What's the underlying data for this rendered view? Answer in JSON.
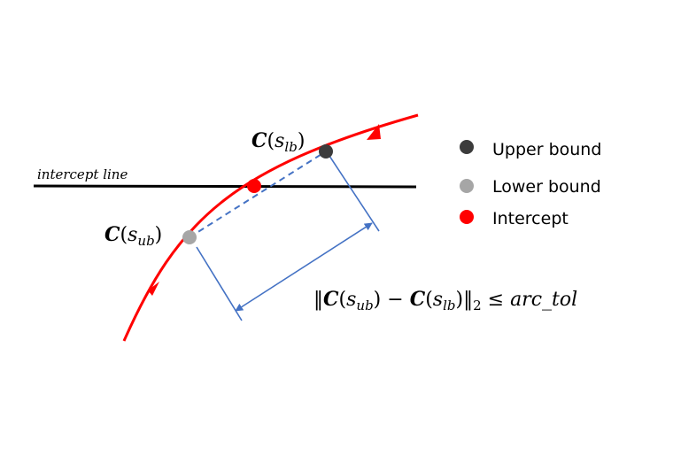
{
  "diagram": {
    "intercept_line_label": "intercept line",
    "label_slb": {
      "func": "C",
      "open": "(",
      "var": "s",
      "sub": "lb",
      "close": ")"
    },
    "label_sub": {
      "func": "C",
      "open": "(",
      "var": "s",
      "sub": "ub",
      "close": ")"
    },
    "formula": {
      "norm_open": "‖",
      "c1": "C",
      "p1_open": "(",
      "s1": "s",
      "sub1": "ub",
      "p1_close": ")",
      "minus": " − ",
      "c2": "C",
      "p2_open": "(",
      "s2": "s",
      "sub2": "lb",
      "p2_close": ")",
      "norm_close": "‖",
      "norm_sub": "2",
      "leq": " ≤ ",
      "tol": "arc_tol"
    },
    "legend": [
      {
        "label": "Upper bound",
        "color": "#3c3c3c"
      },
      {
        "label": "Lower bound",
        "color": "#a6a6a6"
      },
      {
        "label": "Intercept",
        "color": "#ff0000"
      }
    ],
    "colors": {
      "curve": "#ff0000",
      "intercept_line": "#000000",
      "chord": "#4472c4",
      "measure": "#4472c4",
      "upper_point": "#3c3c3c",
      "lower_point": "#a6a6a6",
      "intercept_point": "#ff0000"
    }
  }
}
